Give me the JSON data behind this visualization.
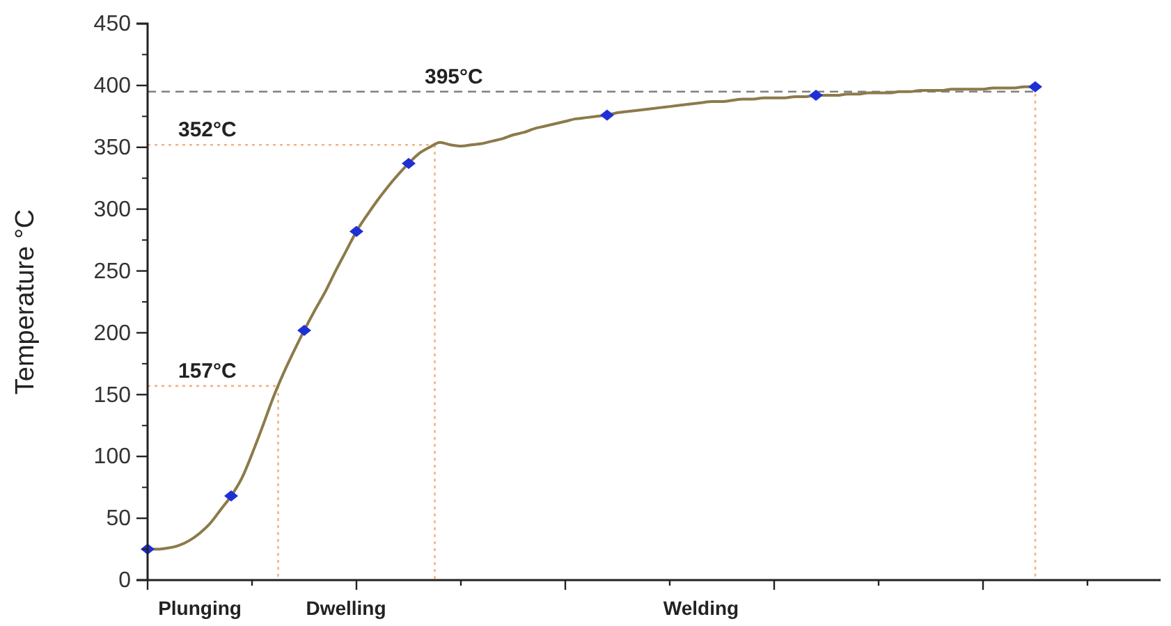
{
  "chart_data": {
    "type": "line",
    "ylabel": "Temperature °C",
    "categories": [
      null,
      null,
      null,
      null,
      null,
      "Plunging",
      null,
      null,
      null,
      null,
      null,
      null,
      null,
      null,
      null,
      null,
      null,
      null,
      null,
      "Dwelling",
      null,
      null,
      null,
      null,
      null,
      null,
      null,
      null,
      null,
      null,
      null,
      null,
      null,
      null,
      null,
      null,
      null,
      null,
      null,
      null,
      null,
      null,
      null,
      null,
      null,
      null,
      null,
      null,
      null,
      null,
      null,
      null,
      null,
      "Welding",
      null,
      null,
      null,
      null,
      null,
      null,
      null,
      null,
      null,
      null,
      null,
      null,
      null,
      null,
      null,
      null,
      null,
      null,
      null,
      null,
      null,
      null,
      null,
      null,
      null,
      null,
      null,
      null,
      null,
      null,
      null,
      null,
      null,
      null,
      null,
      null,
      null,
      null,
      null,
      null,
      null,
      null,
      null,
      null
    ],
    "series": [
      {
        "color": "#8c7a4a",
        "marker": "none",
        "values": [
          25,
          25,
          26,
          28,
          32,
          38,
          46,
          57,
          68,
          82,
          102,
          124,
          147,
          167,
          185,
          202,
          218,
          233,
          250,
          266,
          282,
          295,
          307,
          318,
          328,
          337,
          345,
          350,
          354,
          352,
          351,
          352,
          353,
          355,
          357,
          360,
          362,
          365,
          367,
          369,
          371,
          373,
          374,
          375,
          376,
          378,
          379,
          380,
          381,
          382,
          383,
          384,
          385,
          386,
          387,
          387,
          388,
          389,
          389,
          390,
          390,
          390,
          391,
          391,
          392,
          392,
          392,
          393,
          393,
          394,
          394,
          394,
          395,
          395,
          396,
          396,
          396,
          397,
          397,
          397,
          397,
          398,
          398,
          398,
          399,
          399,
          null,
          null,
          null,
          null,
          null,
          null,
          null,
          null,
          null,
          null,
          null,
          null
        ]
      },
      {
        "type": "scatter",
        "color": "#1f2fd6",
        "marker": "diamond",
        "values": [
          25,
          null,
          null,
          null,
          null,
          null,
          null,
          null,
          68,
          null,
          null,
          null,
          null,
          null,
          null,
          202,
          null,
          null,
          null,
          null,
          282,
          null,
          null,
          null,
          null,
          337,
          null,
          null,
          null,
          null,
          null,
          null,
          null,
          null,
          null,
          null,
          null,
          null,
          null,
          null,
          null,
          null,
          null,
          null,
          376,
          null,
          null,
          null,
          null,
          null,
          null,
          null,
          null,
          null,
          null,
          null,
          null,
          null,
          null,
          null,
          null,
          null,
          null,
          null,
          392,
          null,
          null,
          null,
          null,
          null,
          null,
          null,
          null,
          null,
          null,
          null,
          null,
          null,
          null,
          null,
          null,
          null,
          null,
          null,
          null,
          399,
          null,
          null,
          null,
          null,
          null,
          null,
          null,
          null,
          null,
          null,
          null,
          null
        ]
      }
    ],
    "ylim": [
      0,
      450
    ],
    "yticks": [
      0,
      50,
      100,
      150,
      200,
      250,
      300,
      350,
      400,
      450
    ],
    "grid": false,
    "ref_lines": [
      {
        "axis": "y",
        "value": 157,
        "label": "157°C",
        "color": "#f4b183",
        "line_style": "dotted"
      },
      {
        "axis": "y",
        "value": 352,
        "label": "352°C",
        "color": "#f4b183",
        "line_style": "dotted"
      },
      {
        "axis": "y",
        "value": 395,
        "label": "395°C",
        "color": "#808080",
        "line_style": "dashed"
      }
    ]
  }
}
